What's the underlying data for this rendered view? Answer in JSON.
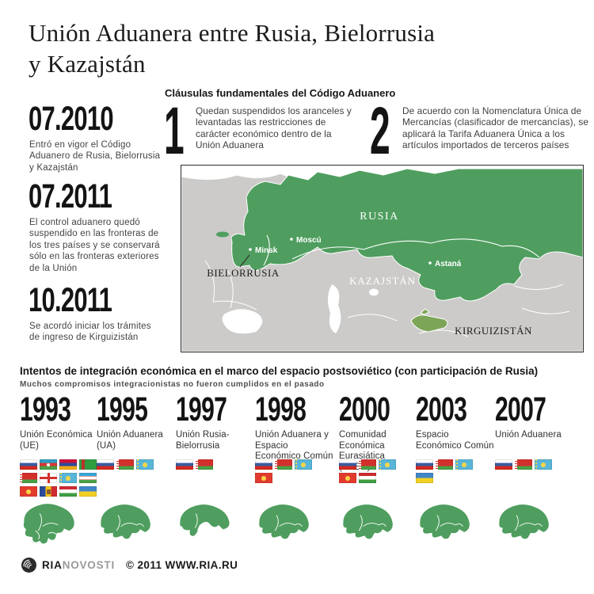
{
  "title": {
    "lines": [
      "Unión Aduanera entre Rusia, Bielorrusia",
      "y Kazajstán"
    ]
  },
  "timeline": {
    "items": [
      {
        "date": "07.2010",
        "text": "Entró en vigor el Código Aduanero de Rusia, Bielorrusia y Kazajstán"
      },
      {
        "date": "07.2011",
        "text": "El control aduanero quedó suspendido en las fronteras de los tres países y se conservará sólo en las fronteras exteriores de la Unión"
      },
      {
        "date": "10.2011",
        "text": "Se acordó iniciar los trámites de ingreso de Kirguizistán"
      }
    ]
  },
  "clauses": {
    "heading": "Cláusulas fundamentales del Código Aduanero",
    "items": [
      {
        "number": "1",
        "text": "Quedan suspendidos los aranceles y levantadas las restricciones de carácter económico dentro de la Unión Aduanera"
      },
      {
        "number": "2",
        "text": "De acuerdo con la Nomenclatura Única de Mercancías (clasificador de mercancías), se aplicará la Tarifa Aduanera Única a los artículos importados de terceros países"
      }
    ]
  },
  "map": {
    "countries": {
      "rusia": "RUSIA",
      "kazajstan": "KAZAJSTÁN",
      "bielorrusia": "BIELORRUSIA",
      "kirguizistan": "KIRGUIZISTÁN"
    },
    "cities": {
      "moscu": "Moscú",
      "minsk": "Minsk",
      "astana": "Astaná"
    },
    "colors": {
      "union_green": "#4f9e5f",
      "kirguizistan_green": "#7da557",
      "land_gray": "#cccbc9",
      "sea_white": "#ffffff"
    }
  },
  "attempts": {
    "heading": "Intentos de integración económica en el marco del espacio postsoviético (con participación de Rusia)",
    "subheading": "Muchos compromisos integracionistas no fueron cumplidos en el pasado",
    "columns": [
      {
        "year": "1993",
        "label": "Unión Económica (UE)",
        "flags": [
          "ru",
          "az",
          "am",
          "tm",
          "by",
          "ge",
          "kz",
          "uz",
          "kg",
          "md",
          "tj",
          "ua"
        ],
        "minimap": "cis"
      },
      {
        "year": "1995",
        "label": "Unión Aduanera (UA)",
        "flags": [
          "ru",
          "by",
          "kz"
        ],
        "minimap": "union"
      },
      {
        "year": "1997",
        "label": "Unión Rusia-Bielorrusia",
        "flags": [
          "ru",
          "by"
        ],
        "minimap": "two"
      },
      {
        "year": "1998",
        "label": "Unión Aduanera y Espacio Económico Común",
        "flags": [
          "ru",
          "by",
          "kz",
          "kg"
        ],
        "minimap": "union"
      },
      {
        "year": "2000",
        "label": "Comunidad Económica Eurasiática (CEEA)",
        "flags": [
          "ru",
          "by",
          "kz",
          "kg",
          "tj"
        ],
        "minimap": "union"
      },
      {
        "year": "2003",
        "label": "Espacio Económico Común",
        "flags": [
          "ru",
          "by",
          "kz",
          "ua"
        ],
        "minimap": "union"
      },
      {
        "year": "2007",
        "label": "Unión Aduanera",
        "flags": [
          "ru",
          "by",
          "kz"
        ],
        "minimap": "union"
      }
    ],
    "flag_names": {
      "ru": "Rusia",
      "by": "Bielorrusia",
      "kz": "Kazajstán",
      "az": "Azerbaiyán",
      "am": "Armenia",
      "tm": "Turkmenistán",
      "ge": "Georgia",
      "uz": "Uzbekistán",
      "kg": "Kirguizistán",
      "md": "Moldavia",
      "tj": "Tayikistán",
      "ua": "Ucrania"
    }
  },
  "footer": {
    "brand_ria": "RIA",
    "brand_novosti": "NOVOSTI",
    "copyright": "© 2011 WWW.RIA.RU"
  }
}
